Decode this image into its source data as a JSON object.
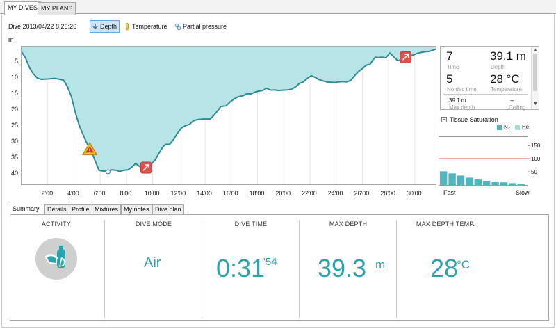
{
  "top_tabs": [
    "MY DIVES",
    "MY PLANS"
  ],
  "dive_title": "Dive 2013/04/22 8:26:26",
  "toolbar": {
    "depth": "Depth",
    "temperature": "Temperature",
    "partial_pressure": "Partial pressure"
  },
  "chart_data": {
    "type": "area",
    "title": "",
    "ylabel": "m",
    "xlabel": "",
    "ylim": [
      0,
      43
    ],
    "xlim": [
      0,
      31.6
    ],
    "y_inverted": true,
    "x_ticks": [
      "2'00",
      "4'00",
      "6'00",
      "8'00",
      "10'00",
      "12'00",
      "14'00",
      "16'00",
      "18'00",
      "20'00",
      "22'00",
      "24'00",
      "26'00",
      "28'00",
      "30'00"
    ],
    "y_ticks": [
      "5",
      "10",
      "15",
      "20",
      "25",
      "30",
      "35",
      "40"
    ],
    "grid": "vertical",
    "fill_color": "#b7e4e6",
    "line_color": "#2e8b95",
    "series": [
      {
        "x": [
          0,
          0.3,
          0.6,
          0.9,
          1.2,
          1.5,
          2.0,
          2.5,
          2.8,
          3.2,
          3.5,
          3.8,
          4.1,
          4.4,
          4.7,
          5.0,
          5.3,
          5.6,
          5.9,
          6.1,
          6.4,
          6.6,
          6.9,
          7.2,
          7.5,
          7.8,
          8.1,
          8.4,
          8.7,
          9.0,
          9.3,
          9.6,
          9.9,
          10.2,
          10.5,
          10.8,
          11.0,
          11.3,
          11.6,
          11.9,
          12.2,
          12.5,
          12.8,
          13.1,
          13.4,
          13.8,
          14.1,
          14.4,
          14.7,
          15.0,
          15.2,
          15.6,
          15.9,
          16.2,
          16.5,
          16.9,
          17.2,
          17.5,
          17.8,
          18.1,
          18.4,
          18.7,
          19.0,
          19.3,
          19.6,
          19.9,
          20.3,
          20.6,
          20.9,
          21.2,
          21.5,
          21.8,
          22.1,
          22.4,
          22.7,
          23.0,
          23.3,
          23.6,
          23.9,
          24.2,
          24.5,
          24.8,
          25.1,
          25.4,
          25.7,
          26.0,
          26.3,
          26.6,
          26.8,
          27.0,
          27.2,
          27.5,
          27.8,
          28.1,
          28.4,
          28.7,
          29.0,
          29.3,
          29.6,
          29.9,
          30.2,
          30.5,
          30.8,
          31.1,
          31.6
        ],
        "y": [
          1.6,
          3.5,
          6.5,
          8.5,
          9.8,
          10.2,
          10.1,
          9.9,
          10.1,
          10.5,
          12.5,
          15.6,
          20.5,
          24.6,
          27.5,
          30.3,
          32.3,
          35.5,
          38.6,
          38.8,
          38.9,
          38.8,
          38.5,
          38.6,
          39.0,
          38.6,
          38.5,
          37.7,
          36.5,
          37.4,
          38.3,
          36.9,
          36.7,
          35.3,
          33.2,
          31.2,
          30.5,
          30.5,
          29.0,
          27.0,
          25.4,
          24.7,
          24.3,
          23.2,
          22.8,
          22.6,
          22.6,
          22.6,
          21.3,
          19.8,
          18.7,
          18.5,
          17.3,
          16.4,
          15.7,
          15.3,
          14.7,
          14.8,
          14.2,
          13.9,
          13.7,
          13.0,
          13.6,
          13.5,
          13.7,
          13.6,
          13.5,
          13.3,
          12.6,
          11.5,
          11.0,
          9.9,
          9.1,
          9.6,
          10.3,
          10.7,
          11.0,
          11.1,
          11.2,
          11.0,
          10.9,
          11.0,
          10.6,
          9.1,
          7.8,
          6.9,
          5.8,
          5.5,
          4.2,
          3.3,
          3.4,
          3.3,
          3.5,
          2.0,
          3.2,
          4.4,
          4.1,
          3.7,
          2.9,
          2.6,
          2.1,
          1.8,
          1.6,
          1.5,
          0.8
        ]
      }
    ],
    "markers": [
      {
        "icon": "warning-triangle-icon",
        "x": 5.2,
        "y": 32.0
      },
      {
        "icon": "ascent-arrow-icon",
        "x": 9.5,
        "y": 37.8
      },
      {
        "icon": "ascent-arrow-icon",
        "x": 29.3,
        "y": 3.3
      }
    ],
    "min_point": {
      "x": 6.6,
      "y": 39.1
    }
  },
  "info_panel": {
    "time_value": "7",
    "time_label": "Time",
    "depth_value": "39.1 m",
    "depth_label": "Depth",
    "nodec_value": "5",
    "nodec_label": "No dec time",
    "temp_value": "28 °C",
    "temp_label": "Temperature",
    "maxdepth_value": "39.1 m",
    "maxdepth_label": "Max depth",
    "ceiling_value": "--",
    "ceiling_label": "Ceiling"
  },
  "tissue": {
    "title": "Tissue Saturation",
    "legend_n2": "N₂",
    "legend_he": "He",
    "y_ticks": [
      "150",
      "100",
      "50"
    ],
    "x_left": "Fast",
    "x_right": "Slow",
    "n2_values": [
      52,
      44,
      36,
      28,
      21,
      16,
      12,
      10,
      7,
      5
    ],
    "limit_value": 100,
    "ymax": 185
  },
  "summary_tabs": [
    "Summary",
    "Details",
    "Profile",
    "Mixtures",
    "My notes",
    "Dive plan"
  ],
  "summary": {
    "activity_label": "ACTIVITY",
    "dive_mode_label": "DIVE MODE",
    "dive_mode_value": "Air",
    "dive_time_label": "DIVE TIME",
    "dive_time_main": "0:31",
    "dive_time_sec": "'54",
    "max_depth_label": "MAX DEPTH",
    "max_depth_value": "39.3",
    "max_depth_unit": "m",
    "max_temp_label": "MAX DEPTH TEMP.",
    "max_temp_value": "28",
    "max_temp_unit": "°C"
  },
  "colors": {
    "accent": "#2aa3ad",
    "limit_line": "#c0392b",
    "bar": "#4fb6bf"
  }
}
